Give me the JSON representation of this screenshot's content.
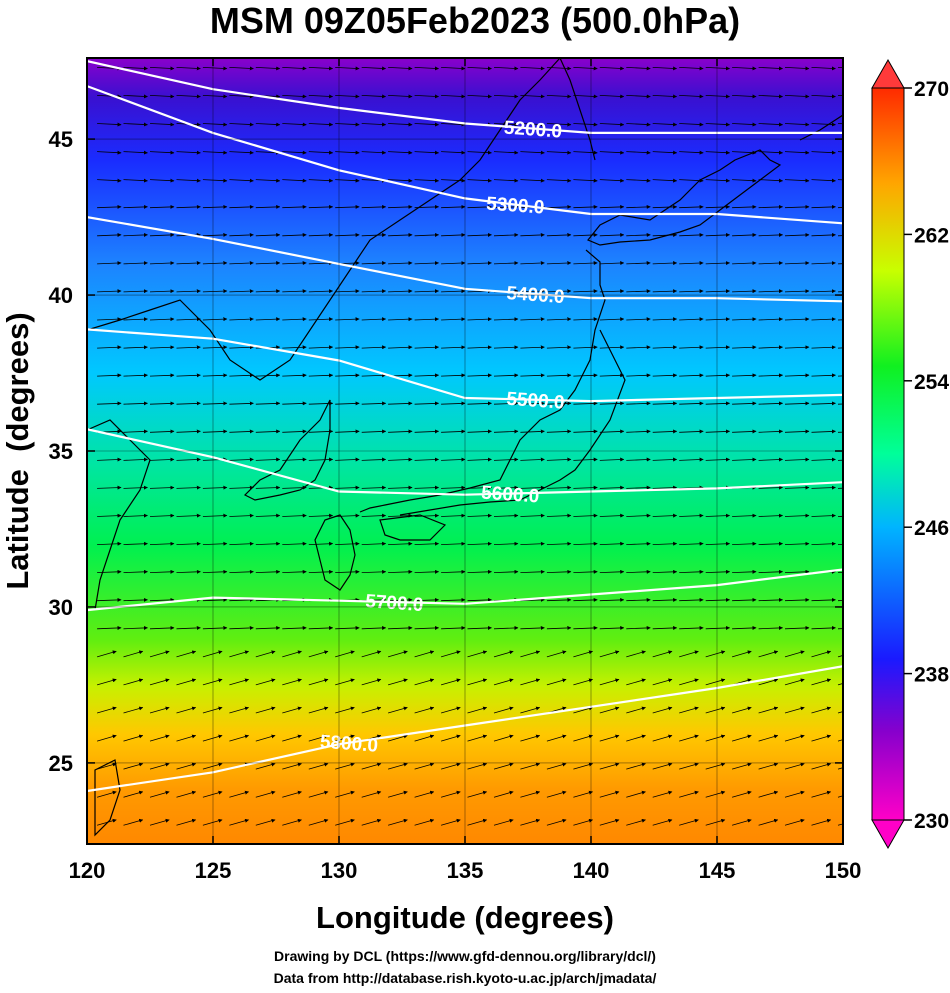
{
  "title": "MSM 09Z05Feb2023 (500.0hPa)",
  "footer": {
    "line1": "Drawing by DCL (https://www.gfd-dennou.org/library/dcl/)",
    "line2": "Data from http://database.rish.kyoto-u.ac.jp/arch/jmadata/"
  },
  "chart_data": {
    "type": "map",
    "xlabel": "Longitude (degrees)",
    "ylabel": "Latitude  (degrees)",
    "xlim": [
      120,
      150
    ],
    "ylim": [
      22.4,
      47.6
    ],
    "xticks": [
      120,
      125,
      130,
      135,
      140,
      145,
      150
    ],
    "yticks": [
      25,
      30,
      35,
      40,
      45
    ],
    "grid": true,
    "shading": {
      "variable": "temperature (K)",
      "colorbar_range": [
        230,
        270
      ],
      "colorbar_tick_labels": [
        230,
        238,
        246,
        254,
        262,
        270
      ],
      "colorbar_extend": "both"
    },
    "contours": [
      {
        "level": 5200,
        "label": "5200.0",
        "label_lon": 137.7,
        "points": [
          [
            120,
            47.5
          ],
          [
            125,
            46.6
          ],
          [
            130,
            46.0
          ],
          [
            135,
            45.5
          ],
          [
            140,
            45.2
          ],
          [
            145,
            45.2
          ],
          [
            150,
            45.2
          ]
        ]
      },
      {
        "level": 5300,
        "label": "5300.0",
        "label_lon": 137.0,
        "points": [
          [
            120,
            46.7
          ],
          [
            125,
            45.2
          ],
          [
            130,
            44.0
          ],
          [
            135,
            43.1
          ],
          [
            140,
            42.6
          ],
          [
            145,
            42.6
          ],
          [
            150,
            42.3
          ]
        ]
      },
      {
        "level": 5400,
        "label": "5400.0",
        "label_lon": 137.8,
        "points": [
          [
            120,
            42.5
          ],
          [
            125,
            41.8
          ],
          [
            130,
            41.0
          ],
          [
            135,
            40.2
          ],
          [
            140,
            39.9
          ],
          [
            145,
            39.9
          ],
          [
            150,
            39.8
          ]
        ]
      },
      {
        "level": 5500,
        "label": "5500.0",
        "label_lon": 137.8,
        "points": [
          [
            120,
            38.9
          ],
          [
            125,
            38.6
          ],
          [
            130,
            37.9
          ],
          [
            135,
            36.7
          ],
          [
            140,
            36.6
          ],
          [
            145,
            36.7
          ],
          [
            150,
            36.8
          ]
        ]
      },
      {
        "level": 5600,
        "label": "5600.0",
        "label_lon": 136.8,
        "points": [
          [
            120,
            35.7
          ],
          [
            125,
            34.8
          ],
          [
            130,
            33.7
          ],
          [
            135,
            33.6
          ],
          [
            140,
            33.7
          ],
          [
            145,
            33.8
          ],
          [
            150,
            34.0
          ]
        ]
      },
      {
        "level": 5700,
        "label": "5700.0",
        "label_lon": 132.2,
        "points": [
          [
            120,
            29.9
          ],
          [
            125,
            30.3
          ],
          [
            130,
            30.2
          ],
          [
            135,
            30.1
          ],
          [
            140,
            30.4
          ],
          [
            145,
            30.7
          ],
          [
            150,
            31.2
          ]
        ]
      },
      {
        "level": 5800,
        "label": "5800.0",
        "label_lon": 130.4,
        "points": [
          [
            120,
            24.1
          ],
          [
            125,
            24.7
          ],
          [
            130,
            25.6
          ],
          [
            135,
            26.2
          ],
          [
            140,
            26.8
          ],
          [
            145,
            27.4
          ],
          [
            150,
            28.1
          ]
        ]
      }
    ]
  },
  "colors": {
    "colorbar_stops": [
      "#ff00c8",
      "#8800cc",
      "#1a1aff",
      "#00b4ff",
      "#00ff66",
      "#c8ff00",
      "#ffa500",
      "#ff2a00"
    ],
    "contour": "#ffffff",
    "vector": "#000000",
    "coastline": "#000000"
  }
}
